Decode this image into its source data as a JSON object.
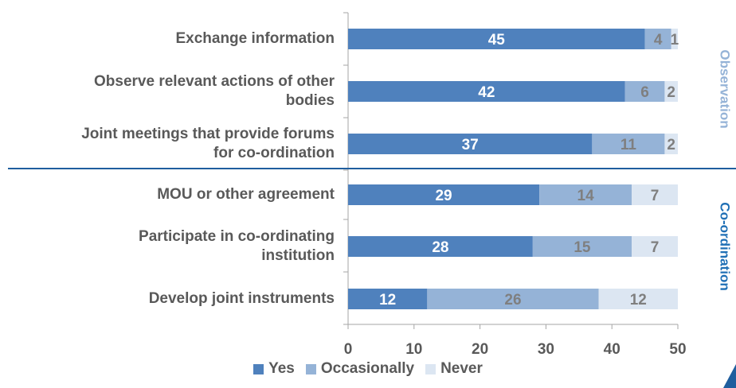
{
  "chart_data": {
    "type": "bar",
    "orientation": "horizontal",
    "stacked": true,
    "categories": [
      "Exchange information",
      "Observe relevant actions of other bodies",
      "Joint meetings that provide forums for co-ordination",
      "MOU or other agreement",
      "Participate in co-ordinating institution",
      "Develop joint instruments"
    ],
    "series": [
      {
        "name": "Yes",
        "values": [
          45,
          42,
          37,
          29,
          28,
          12
        ],
        "color": "#4f81bd"
      },
      {
        "name": "Occasionally",
        "values": [
          4,
          6,
          11,
          14,
          15,
          26
        ],
        "color": "#95b3d7"
      },
      {
        "name": "Never",
        "values": [
          1,
          2,
          2,
          7,
          7,
          12
        ],
        "color": "#dce6f2"
      }
    ],
    "xlim": [
      0,
      50
    ],
    "xticks": [
      0,
      10,
      20,
      30,
      40,
      50
    ],
    "groups": [
      {
        "label": "Observation",
        "categories": [
          0,
          1,
          2
        ],
        "color": "#95b3d7"
      },
      {
        "label": "Co-ordination",
        "categories": [
          3,
          4,
          5
        ],
        "color": "#1f6fb5"
      }
    ],
    "legend_position": "bottom",
    "grid": false
  }
}
